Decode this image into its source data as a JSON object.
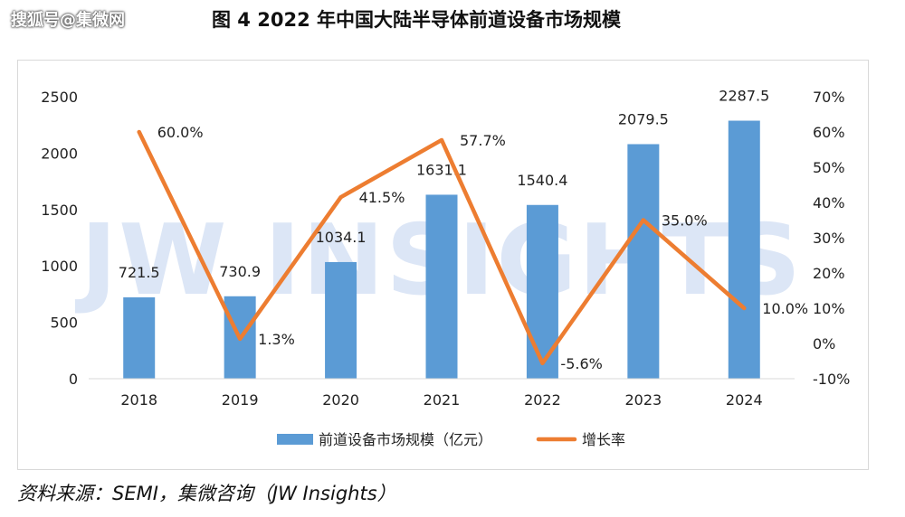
{
  "watermark": "搜狐号@集微网",
  "figure_title": "图 4    2022 年中国大陆半导体前道设备市场规模",
  "source": "资料来源：SEMI，集微咨询（JW Insights）",
  "background_watermark": "JW INSIGHTS",
  "colors": {
    "bar": "#5b9bd5",
    "line": "#ed7d31",
    "watermark": "#dce6f6",
    "axis": "#d9d9d9",
    "text": "#222222"
  },
  "chart_data": {
    "type": "bar",
    "categories": [
      "2018",
      "2019",
      "2020",
      "2021",
      "2022",
      "2023",
      "2024"
    ],
    "series": [
      {
        "name": "前道设备市场规模（亿元）",
        "type": "bar",
        "axis": "left",
        "values": [
          721.5,
          730.9,
          1034.1,
          1631.1,
          1540.4,
          2079.5,
          2287.5
        ],
        "labels": [
          "721.5",
          "730.9",
          "1034.1",
          "1631.1",
          "1540.4",
          "2079.5",
          "2287.5"
        ]
      },
      {
        "name": "增长率",
        "type": "line",
        "axis": "right",
        "values": [
          60.0,
          1.3,
          41.5,
          57.7,
          -5.6,
          35.0,
          10.0
        ],
        "labels": [
          "60.0%",
          "1.3%",
          "41.5%",
          "57.7%",
          "-5.6%",
          "35.0%",
          "10.0%"
        ]
      }
    ],
    "y_left": {
      "min": 0,
      "max": 2500,
      "ticks": [
        "0",
        "500",
        "1000",
        "1500",
        "2000",
        "2500"
      ]
    },
    "y_right": {
      "min": -10,
      "max": 70,
      "ticks": [
        "-10%",
        "0%",
        "10%",
        "20%",
        "30%",
        "40%",
        "50%",
        "60%",
        "70%"
      ]
    },
    "grid": false,
    "legend_position": "bottom"
  }
}
